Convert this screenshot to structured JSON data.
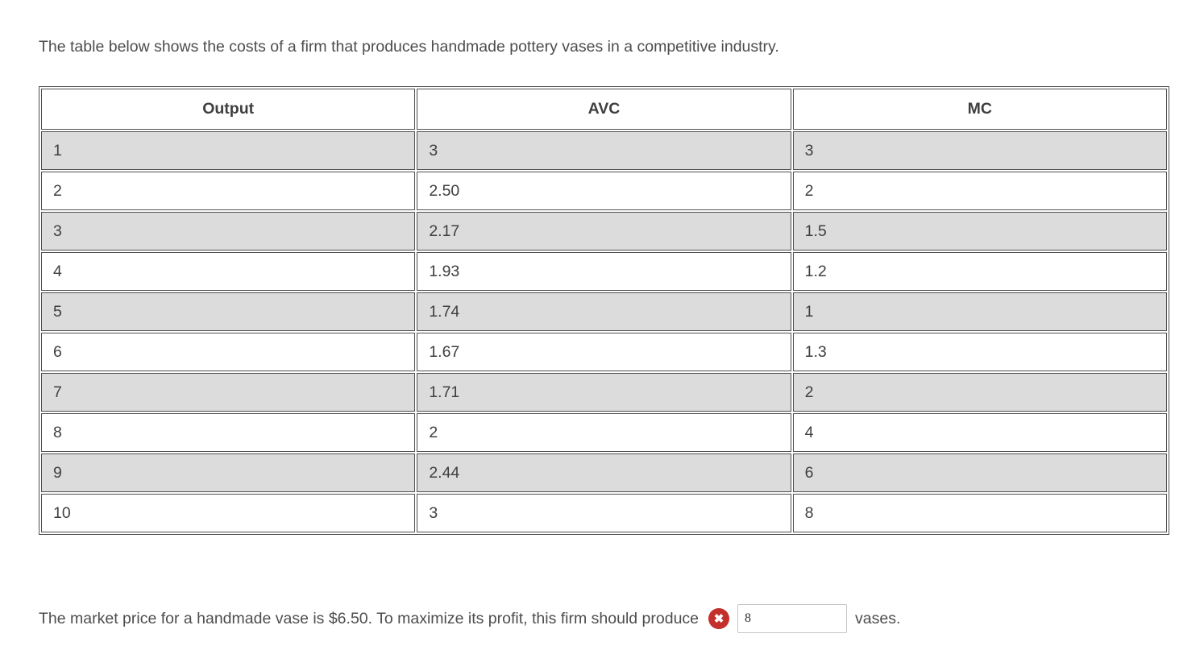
{
  "intro_text": "The table below shows the costs of a firm that produces handmade pottery vases in a competitive industry.",
  "table": {
    "headers": [
      "Output",
      "AVC",
      "MC"
    ],
    "rows": [
      [
        "1",
        "3",
        "3"
      ],
      [
        "2",
        "2.50",
        "2"
      ],
      [
        "3",
        "2.17",
        "1.5"
      ],
      [
        "4",
        "1.93",
        "1.2"
      ],
      [
        "5",
        "1.74",
        "1"
      ],
      [
        "6",
        "1.67",
        "1.3"
      ],
      [
        "7",
        "1.71",
        "2"
      ],
      [
        "8",
        "2",
        "4"
      ],
      [
        "9",
        "2.44",
        "6"
      ],
      [
        "10",
        "3",
        "8"
      ]
    ],
    "stripe_color": "#dcdcdc",
    "border_color": "#4f4f4f"
  },
  "question": {
    "text_before": "The market price for a handmade vase is $6.50. To maximize its profit, this firm should produce",
    "answer_value": "8",
    "text_after": "vases.",
    "status": "incorrect",
    "status_color": "#c4302b",
    "status_glyph": "✖"
  }
}
